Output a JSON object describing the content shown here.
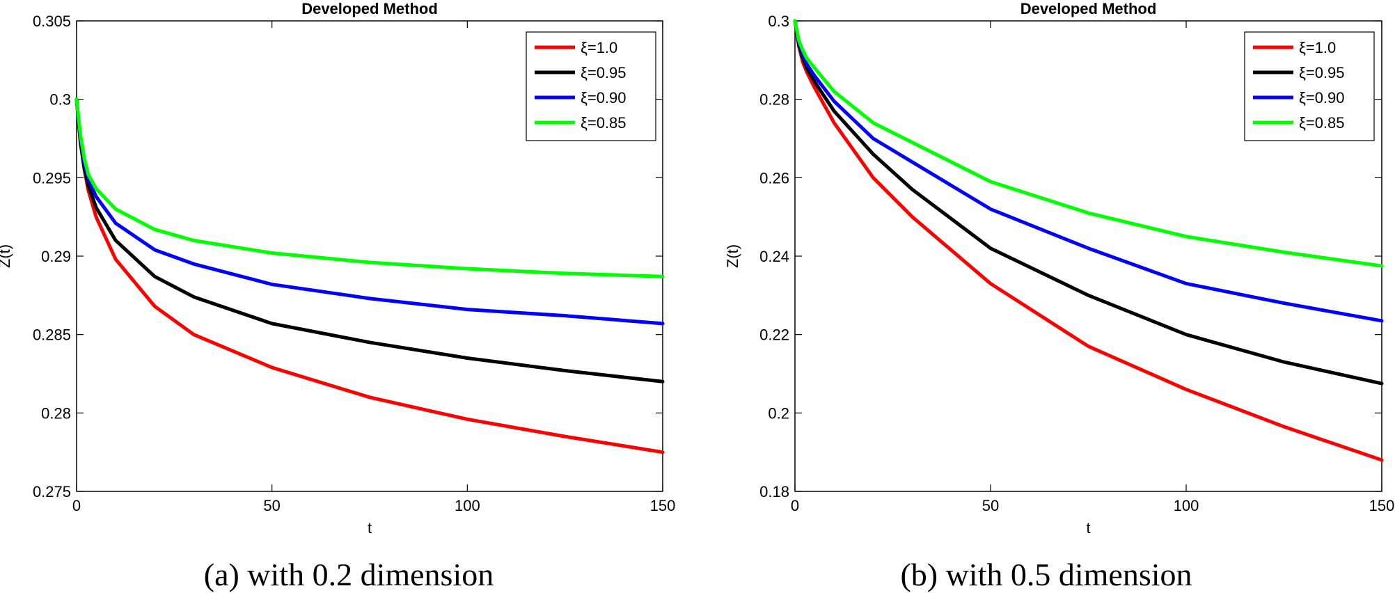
{
  "chart_data": [
    {
      "type": "line",
      "title": "Developed Method",
      "xlabel": "t",
      "ylabel": "Z(t)",
      "xlim": [
        0,
        150
      ],
      "ylim": [
        0.275,
        0.305
      ],
      "xticks": [
        "0",
        "50",
        "100",
        "150"
      ],
      "yticks": [
        "0.275",
        "0.28",
        "0.285",
        "0.29",
        "0.295",
        "0.3",
        "0.305"
      ],
      "legend_position": "top-right",
      "caption": "(a) with 0.2 dimension",
      "x": [
        0,
        1,
        2,
        3,
        5,
        10,
        20,
        30,
        50,
        75,
        100,
        125,
        150
      ],
      "series": [
        {
          "name": "ξ=1.0",
          "color": "#ff0000",
          "values": [
            0.3,
            0.2972,
            0.2955,
            0.2942,
            0.2925,
            0.2898,
            0.2868,
            0.285,
            0.2829,
            0.281,
            0.2796,
            0.2785,
            0.2775
          ]
        },
        {
          "name": "ξ=0.95",
          "color": "#000000",
          "values": [
            0.3,
            0.2973,
            0.2956,
            0.2945,
            0.2931,
            0.291,
            0.2887,
            0.2874,
            0.2857,
            0.2845,
            0.2835,
            0.2827,
            0.282
          ]
        },
        {
          "name": "ξ=0.90",
          "color": "#0000ff",
          "values": [
            0.3,
            0.2975,
            0.2959,
            0.2949,
            0.2938,
            0.2921,
            0.2904,
            0.2895,
            0.2882,
            0.2873,
            0.2866,
            0.2862,
            0.2857
          ]
        },
        {
          "name": "ξ=0.85",
          "color": "#00ff00",
          "values": [
            0.3,
            0.2977,
            0.2962,
            0.2952,
            0.2943,
            0.293,
            0.2917,
            0.291,
            0.2902,
            0.2896,
            0.2892,
            0.2889,
            0.2887
          ]
        }
      ]
    },
    {
      "type": "line",
      "title": "Developed Method",
      "xlabel": "t",
      "ylabel": "Z(t)",
      "xlim": [
        0,
        150
      ],
      "ylim": [
        0.18,
        0.3
      ],
      "xticks": [
        "0",
        "50",
        "100",
        "150"
      ],
      "yticks": [
        "0.18",
        "0.2",
        "0.22",
        "0.24",
        "0.26",
        "0.28",
        "0.3"
      ],
      "legend_position": "top-right",
      "caption": "(b) with 0.5 dimension",
      "x": [
        0,
        1,
        2,
        3,
        5,
        10,
        20,
        30,
        50,
        75,
        100,
        125,
        150
      ],
      "series": [
        {
          "name": "ξ=1.0",
          "color": "#ff0000",
          "values": [
            0.3,
            0.2935,
            0.2895,
            0.287,
            0.283,
            0.274,
            0.26,
            0.25,
            0.233,
            0.217,
            0.206,
            0.1965,
            0.188
          ]
        },
        {
          "name": "ξ=0.95",
          "color": "#000000",
          "values": [
            0.3,
            0.294,
            0.2905,
            0.288,
            0.2845,
            0.277,
            0.266,
            0.257,
            0.242,
            0.23,
            0.22,
            0.213,
            0.2075
          ]
        },
        {
          "name": "ξ=0.90",
          "color": "#0000ff",
          "values": [
            0.3,
            0.2945,
            0.2915,
            0.289,
            0.286,
            0.2795,
            0.27,
            0.264,
            0.252,
            0.242,
            0.233,
            0.228,
            0.2235
          ]
        },
        {
          "name": "ξ=0.85",
          "color": "#00ff00",
          "values": [
            0.3,
            0.295,
            0.2925,
            0.2905,
            0.288,
            0.282,
            0.274,
            0.269,
            0.259,
            0.251,
            0.245,
            0.241,
            0.2375
          ]
        }
      ]
    }
  ]
}
